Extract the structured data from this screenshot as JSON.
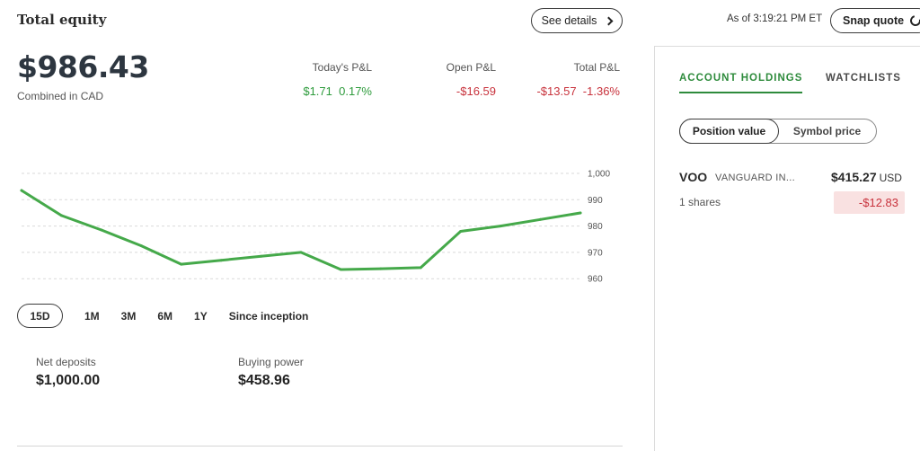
{
  "header": {
    "title": "Total equity",
    "see_details_label": "See details",
    "as_of": "As of 3:19:21 PM ET",
    "snap_quote_label": "Snap quote"
  },
  "equity": {
    "value": "$986.43",
    "subtitle": "Combined in CAD"
  },
  "stats": {
    "todays_pl_label": "Today's P&L",
    "todays_pl_amount": "$1.71",
    "todays_pl_percent": "0.17%",
    "open_pl_label": "Open P&L",
    "open_pl_amount": "-$16.59",
    "total_pl_label": "Total P&L",
    "total_pl_amount": "-$13.57",
    "total_pl_percent": "-1.36%"
  },
  "chart_data": {
    "type": "line",
    "x": [
      0,
      1,
      2,
      3,
      4,
      5,
      6,
      7,
      8,
      9,
      10,
      11,
      12,
      13,
      14
    ],
    "series": [
      {
        "values": [
          993.5,
          984.0,
          978.5,
          972.5,
          965.5,
          967.0,
          968.5,
          970.0,
          963.5,
          963.8,
          964.2,
          978.0,
          980.0,
          982.5,
          985.0
        ]
      }
    ],
    "yticks": [
      "1,000",
      "990",
      "980",
      "970",
      "960"
    ],
    "ylim": [
      957,
      1000
    ],
    "grid": true,
    "color": "#45a94a"
  },
  "ranges": [
    {
      "label": "15D",
      "active": true
    },
    {
      "label": "1M",
      "active": false
    },
    {
      "label": "3M",
      "active": false
    },
    {
      "label": "6M",
      "active": false
    },
    {
      "label": "1Y",
      "active": false
    },
    {
      "label": "Since inception",
      "active": false
    }
  ],
  "summary": {
    "net_deposits_label": "Net deposits",
    "net_deposits_value": "$1,000.00",
    "buying_power_label": "Buying power",
    "buying_power_value": "$458.96"
  },
  "panel": {
    "tab_holdings": "ACCOUNT HOLDINGS",
    "tab_watchlists": "WATCHLISTS",
    "seg_position_value": "Position value",
    "seg_symbol_price": "Symbol price",
    "holding": {
      "symbol": "VOO",
      "name": "VANGUARD IN...",
      "price": "$415.27",
      "currency": "USD",
      "shares": "1 shares",
      "change": "-$12.83"
    }
  },
  "colors": {
    "positive": "#2e9b3c",
    "negative": "#c8323c",
    "accent": "#2e8b3c"
  }
}
